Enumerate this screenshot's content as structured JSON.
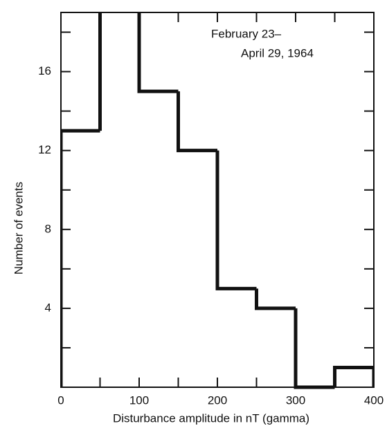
{
  "chart_data": {
    "type": "histogram",
    "xlabel": "Disturbance amplitude in nT (gamma)",
    "ylabel": "Number of events",
    "annotation": [
      "February 23–",
      "April 29, 1964"
    ],
    "bins": [
      0,
      50,
      100,
      150,
      200,
      250,
      300,
      350,
      400
    ],
    "values": [
      13,
      20,
      15,
      12,
      5,
      4,
      0,
      1
    ],
    "color": "#111111",
    "xlim": [
      0,
      400
    ],
    "ylim": [
      0,
      19
    ],
    "xticks": [
      0,
      100,
      200,
      300,
      400
    ],
    "yticks": [
      4,
      8,
      12,
      16
    ],
    "xminor_ticks": [
      50,
      150,
      250,
      350
    ],
    "yminor_ticks": [
      2,
      6,
      10,
      14,
      18
    ]
  }
}
